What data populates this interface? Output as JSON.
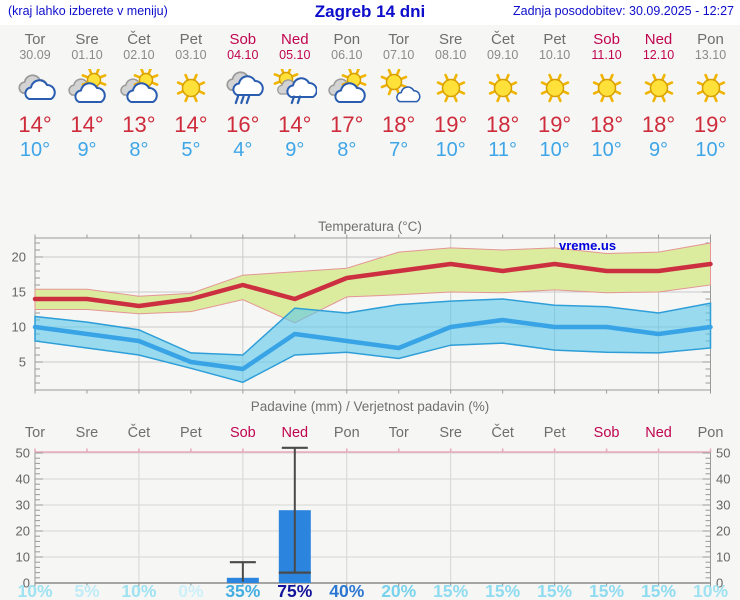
{
  "header": {
    "left_note": "(kraj lahko izberete v meniju)",
    "title": "Zagreb 14 dni",
    "updated": "Zadnja posodobitev: 30.09.2025 - 12:27"
  },
  "watermark": "vreme.us",
  "days": [
    {
      "name": "Tor",
      "date": "30.09",
      "weekend": false,
      "icon": "cloudy",
      "tmax": "14",
      "tmin": "10",
      "prob": "10%",
      "prob_color": "#9fe2f2"
    },
    {
      "name": "Sre",
      "date": "01.10",
      "weekend": false,
      "icon": "partly",
      "tmax": "14",
      "tmin": "9",
      "prob": "5%",
      "prob_color": "#c0ecf7"
    },
    {
      "name": "Čet",
      "date": "02.10",
      "weekend": false,
      "icon": "partly",
      "tmax": "13",
      "tmin": "8",
      "prob": "10%",
      "prob_color": "#9fe2f2"
    },
    {
      "name": "Pet",
      "date": "03.10",
      "weekend": false,
      "icon": "sunny",
      "tmax": "14",
      "tmin": "5",
      "prob": "0%",
      "prob_color": "#cdf0f9"
    },
    {
      "name": "Sob",
      "date": "04.10",
      "weekend": true,
      "icon": "rain",
      "tmax": "16",
      "tmin": "4",
      "prob": "35%",
      "prob_color": "#44aee2"
    },
    {
      "name": "Ned",
      "date": "05.10",
      "weekend": true,
      "icon": "sun-rain",
      "tmax": "14",
      "tmin": "9",
      "prob": "75%",
      "prob_color": "#14149b"
    },
    {
      "name": "Pon",
      "date": "06.10",
      "weekend": false,
      "icon": "partly",
      "tmax": "17",
      "tmin": "8",
      "prob": "40%",
      "prob_color": "#2c77d2"
    },
    {
      "name": "Tor",
      "date": "07.10",
      "weekend": false,
      "icon": "sun-cloud",
      "tmax": "18",
      "tmin": "7",
      "prob": "20%",
      "prob_color": "#79d3ec"
    },
    {
      "name": "Sre",
      "date": "08.10",
      "weekend": false,
      "icon": "sunny",
      "tmax": "19",
      "tmin": "10",
      "prob": "15%",
      "prob_color": "#8fdcf0"
    },
    {
      "name": "Čet",
      "date": "09.10",
      "weekend": false,
      "icon": "sunny",
      "tmax": "18",
      "tmin": "11",
      "prob": "15%",
      "prob_color": "#8fdcf0"
    },
    {
      "name": "Pet",
      "date": "10.10",
      "weekend": false,
      "icon": "sunny",
      "tmax": "19",
      "tmin": "10",
      "prob": "15%",
      "prob_color": "#8fdcf0"
    },
    {
      "name": "Sob",
      "date": "11.10",
      "weekend": true,
      "icon": "sunny",
      "tmax": "18",
      "tmin": "10",
      "prob": "15%",
      "prob_color": "#8fdcf0"
    },
    {
      "name": "Ned",
      "date": "12.10",
      "weekend": true,
      "icon": "sunny",
      "tmax": "18",
      "tmin": "9",
      "prob": "15%",
      "prob_color": "#8fdcf0"
    },
    {
      "name": "Pon",
      "date": "13.10",
      "weekend": false,
      "icon": "sunny",
      "tmax": "19",
      "tmin": "10",
      "prob": "10%",
      "prob_color": "#9fe2f2"
    }
  ],
  "chart_data": [
    {
      "type": "line",
      "title": "Temperatura (°C)",
      "x_categories": [
        "Tor 30.09",
        "Sre 01.10",
        "Čet 02.10",
        "Pet 03.10",
        "Sob 04.10",
        "Ned 05.10",
        "Pon 06.10",
        "Tor 07.10",
        "Sre 08.10",
        "Čet 09.10",
        "Pet 10.10",
        "Sob 11.10",
        "Ned 12.10",
        "Pon 13.10"
      ],
      "yticks": [
        5,
        10,
        15,
        20
      ],
      "ylim": [
        1,
        22.7
      ],
      "series": [
        {
          "name": "max temperature",
          "values": [
            14,
            14,
            13,
            14,
            16,
            14,
            17,
            18,
            19,
            18,
            19,
            18,
            18,
            19
          ]
        },
        {
          "name": "max band upper",
          "values": [
            15.4,
            15.4,
            14.4,
            14.8,
            17.4,
            17.9,
            18.4,
            20.7,
            21.3,
            21,
            21.3,
            20.5,
            20.7,
            22
          ]
        },
        {
          "name": "max band lower",
          "values": [
            12.5,
            12.5,
            11.9,
            12.2,
            13.9,
            10.6,
            14.3,
            14.6,
            15,
            14.9,
            15.3,
            14.9,
            15,
            16
          ]
        },
        {
          "name": "min temperature",
          "values": [
            10,
            9,
            8,
            5,
            4,
            9,
            8,
            7,
            10,
            11,
            10,
            10,
            9,
            10
          ]
        },
        {
          "name": "min band upper",
          "values": [
            11.5,
            10.7,
            9.6,
            6.3,
            6,
            12.7,
            12,
            13.2,
            13.7,
            14,
            13.1,
            12.9,
            12,
            13.4
          ]
        },
        {
          "name": "min band lower",
          "values": [
            8,
            7,
            6,
            4.1,
            2.1,
            6,
            6.4,
            5.5,
            7.4,
            7.7,
            6.7,
            6.4,
            6.3,
            7
          ]
        }
      ]
    },
    {
      "type": "bar",
      "title": "Padavine (mm) / Verjetnost padavin (%)",
      "x_categories": [
        "Tor",
        "Sre",
        "Čet",
        "Pet",
        "Sob",
        "Ned",
        "Pon",
        "Tor",
        "Sre",
        "Čet",
        "Pet",
        "Sob",
        "Ned",
        "Pon"
      ],
      "yticks": [
        0,
        10,
        20,
        30,
        40,
        50
      ],
      "ylim": [
        0,
        52
      ],
      "bars": [
        {
          "day_index": 4,
          "label": "Sob 04.10",
          "value": 2,
          "whisker_low": 0,
          "whisker_high": 8
        },
        {
          "day_index": 5,
          "label": "Ned 05.10",
          "value": 28,
          "whisker_low": 4,
          "whisker_high": 52
        }
      ],
      "probabilities_pct": [
        10,
        5,
        10,
        0,
        35,
        75,
        40,
        20,
        15,
        15,
        15,
        15,
        15,
        10
      ]
    }
  ],
  "colors": {
    "header_blue": "#0d0dcc",
    "weekend": "#c00550",
    "weekday": "#6e6e6e",
    "tmax_text": "#ce2c3c",
    "tmin_text": "#3da5e8",
    "temp_max_line": "#cc3040",
    "temp_max_band": "#dcec9e",
    "temp_max_band_edge": "#e49595",
    "temp_min_line": "#38a4e6",
    "temp_min_band": "rgba(96,200,234,0.62)",
    "temp_min_band_edge": "#2e9ed8",
    "bar": "#2b84dd",
    "whisker": "#4a4a4a",
    "grid": "#cbcbcb",
    "border": "#9a9a9a",
    "precip_top_border": "#e9a9bb",
    "axis_text": "#666666",
    "watermark_blue": "#0000dd"
  }
}
